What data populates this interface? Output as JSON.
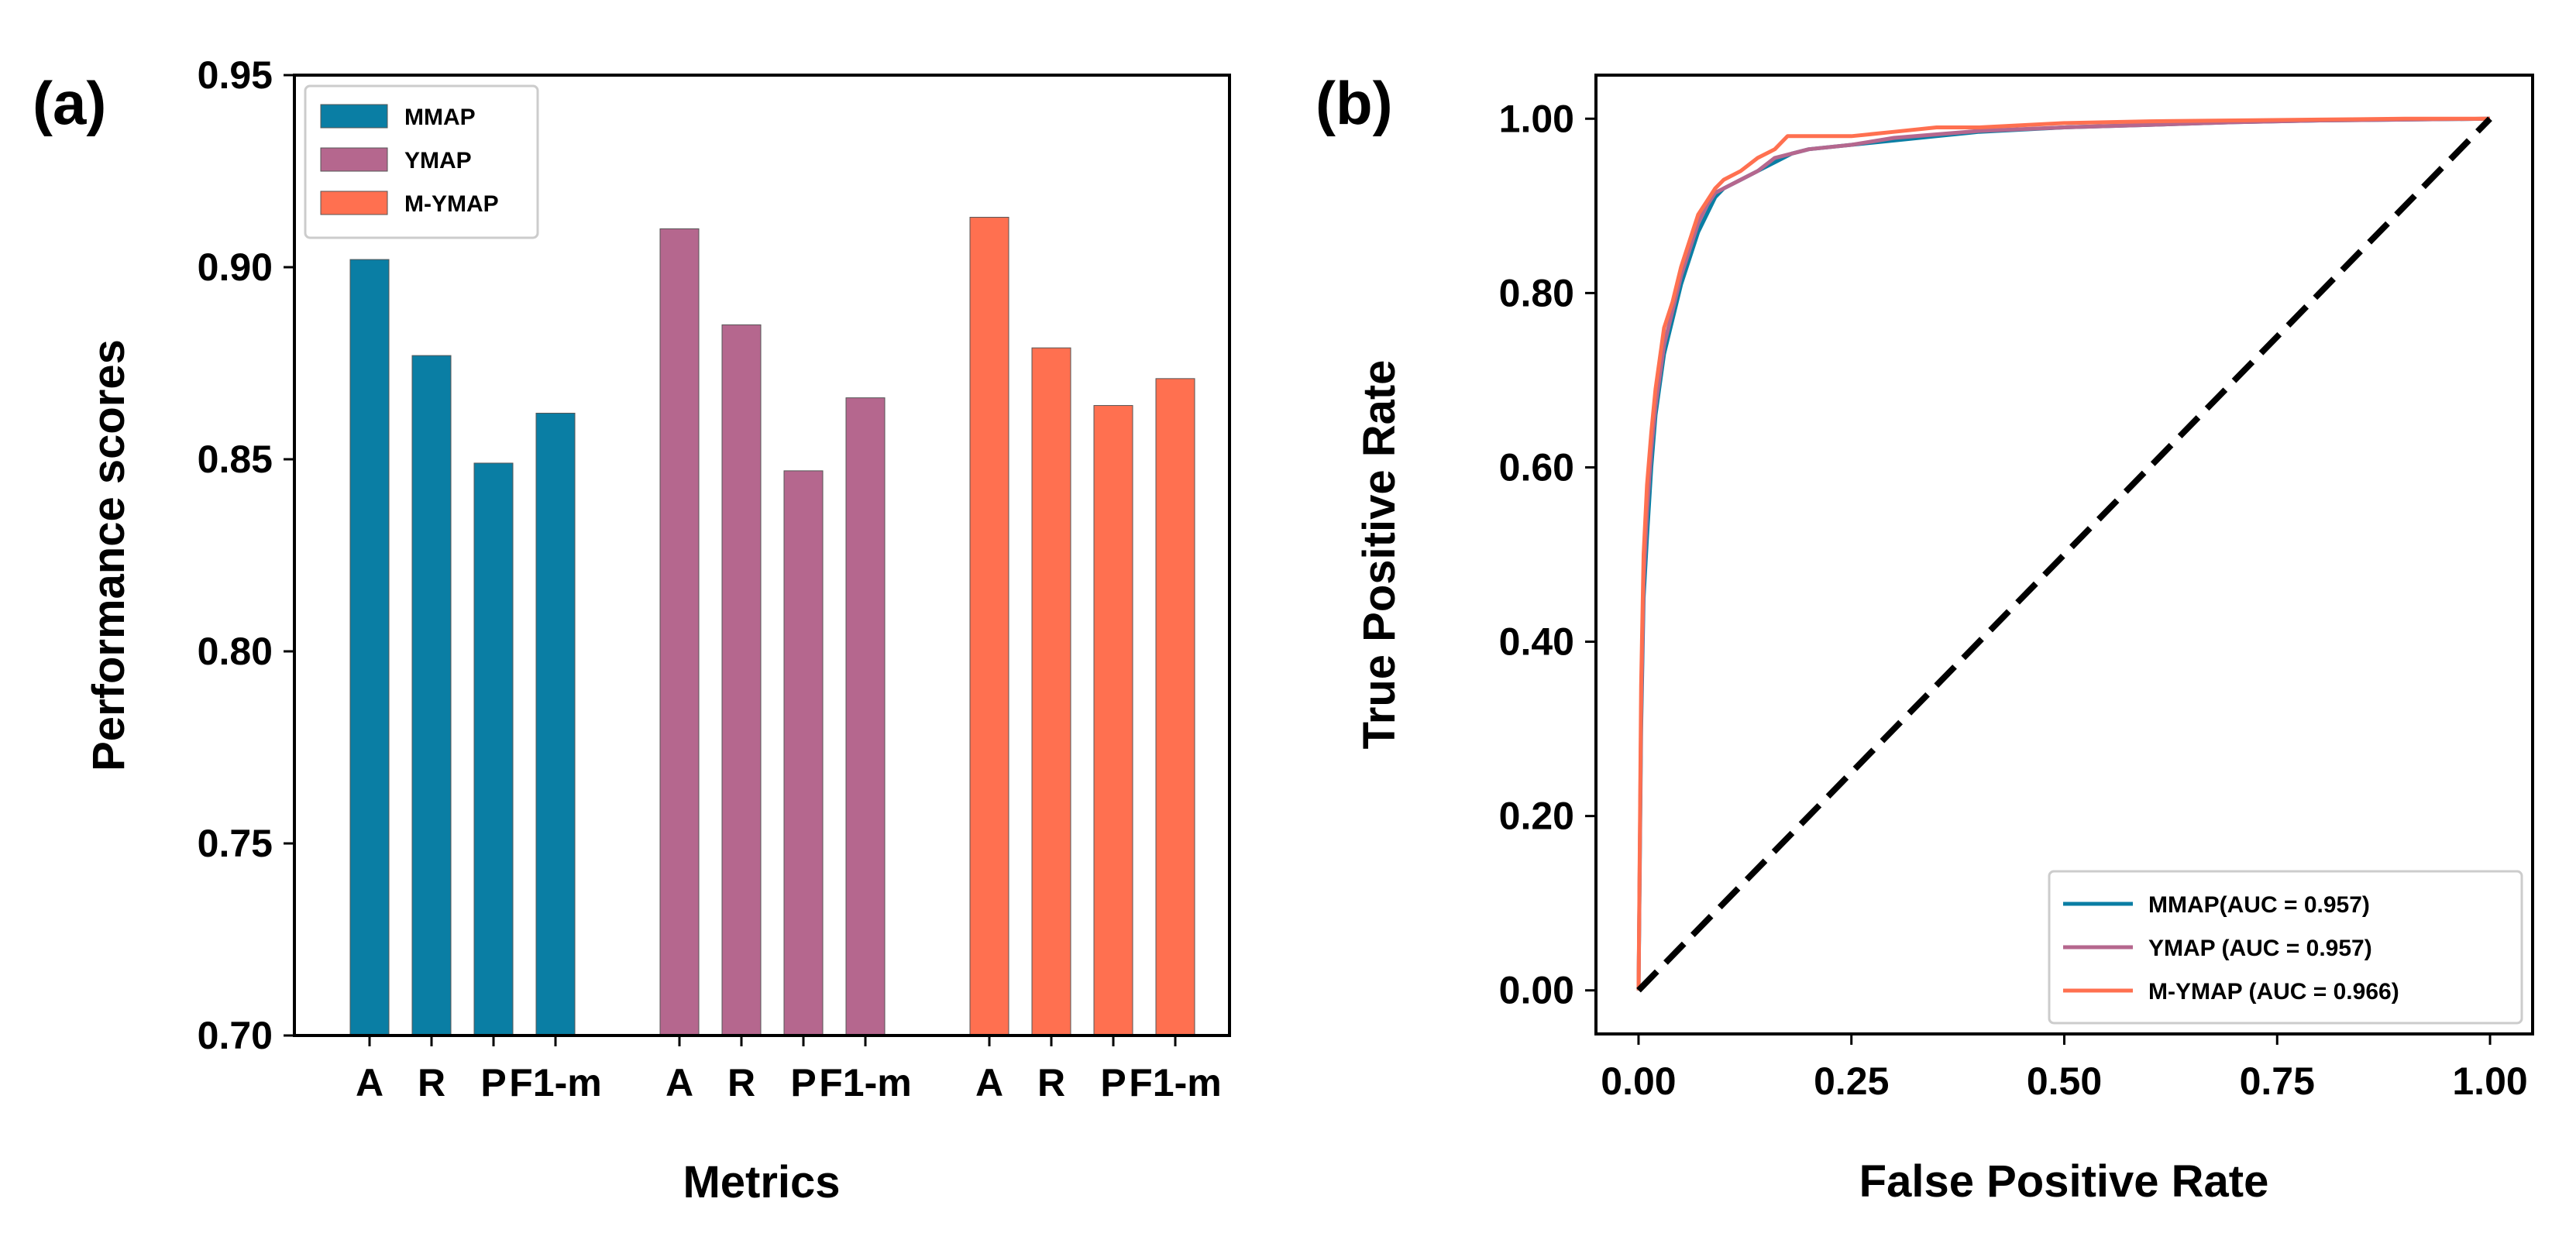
{
  "colors": {
    "mmap": "#0a7ea4",
    "ymap": "#b5678e",
    "mymap": "#ff7050",
    "diagonal": "#000000"
  },
  "chart_data": [
    {
      "panel_label": "(a)",
      "type": "bar",
      "title": "",
      "xlabel": "Metrics",
      "ylabel": "Performance scores",
      "ylim": [
        0.7,
        0.95
      ],
      "yticks": [
        "0.70",
        "0.75",
        "0.80",
        "0.85",
        "0.90",
        "0.95"
      ],
      "categories": [
        "A",
        "R",
        "P",
        "F1-m"
      ],
      "grid": false,
      "legend": "top-left",
      "series": [
        {
          "name": "MMAP",
          "color_key": "mmap",
          "values": [
            0.902,
            0.877,
            0.849,
            0.862
          ]
        },
        {
          "name": "YMAP",
          "color_key": "ymap",
          "values": [
            0.91,
            0.885,
            0.847,
            0.866
          ]
        },
        {
          "name": "M-YMAP",
          "color_key": "mymap",
          "values": [
            0.913,
            0.879,
            0.864,
            0.871
          ]
        }
      ]
    },
    {
      "panel_label": "(b)",
      "type": "line",
      "title": "",
      "xlabel": "False Positive Rate",
      "ylabel": "True Positive Rate",
      "xlim": [
        -0.05,
        1.05
      ],
      "ylim": [
        -0.05,
        1.05
      ],
      "xticks": [
        "0.00",
        "0.25",
        "0.50",
        "0.75",
        "1.00"
      ],
      "yticks": [
        "0.00",
        "0.20",
        "0.40",
        "0.60",
        "0.80",
        "1.00"
      ],
      "grid": false,
      "legend": "bottom-right",
      "series": [
        {
          "name": "MMAP(AUC = 0.957)",
          "color_key": "mmap",
          "x": [
            0,
            0.003,
            0.006,
            0.01,
            0.015,
            0.02,
            0.03,
            0.04,
            0.05,
            0.06,
            0.07,
            0.08,
            0.09,
            0.1,
            0.12,
            0.14,
            0.16,
            0.18,
            0.2,
            0.25,
            0.3,
            0.35,
            0.4,
            0.5,
            0.6,
            0.7,
            0.8,
            0.9,
            1.0
          ],
          "y": [
            0,
            0.3,
            0.45,
            0.52,
            0.6,
            0.66,
            0.73,
            0.77,
            0.81,
            0.84,
            0.87,
            0.89,
            0.91,
            0.92,
            0.93,
            0.94,
            0.95,
            0.96,
            0.965,
            0.97,
            0.975,
            0.98,
            0.985,
            0.99,
            0.993,
            0.996,
            0.998,
            0.999,
            1.0
          ]
        },
        {
          "name": "YMAP (AUC = 0.957)",
          "color_key": "ymap",
          "x": [
            0,
            0.003,
            0.006,
            0.01,
            0.015,
            0.02,
            0.03,
            0.04,
            0.05,
            0.06,
            0.07,
            0.08,
            0.09,
            0.1,
            0.12,
            0.14,
            0.16,
            0.18,
            0.2,
            0.25,
            0.3,
            0.35,
            0.4,
            0.5,
            0.6,
            0.7,
            0.8,
            0.9,
            1.0
          ],
          "y": [
            0,
            0.32,
            0.47,
            0.55,
            0.62,
            0.67,
            0.74,
            0.78,
            0.82,
            0.85,
            0.88,
            0.9,
            0.915,
            0.92,
            0.93,
            0.94,
            0.955,
            0.96,
            0.965,
            0.97,
            0.978,
            0.982,
            0.986,
            0.99,
            0.993,
            0.996,
            0.998,
            0.999,
            1.0
          ]
        },
        {
          "name": "M-YMAP (AUC = 0.966)",
          "color_key": "mymap",
          "x": [
            0,
            0.003,
            0.006,
            0.01,
            0.015,
            0.02,
            0.03,
            0.04,
            0.05,
            0.06,
            0.07,
            0.08,
            0.09,
            0.1,
            0.12,
            0.14,
            0.16,
            0.175,
            0.2,
            0.25,
            0.3,
            0.35,
            0.4,
            0.5,
            0.6,
            0.7,
            0.8,
            0.9,
            1.0
          ],
          "y": [
            0,
            0.35,
            0.5,
            0.58,
            0.64,
            0.69,
            0.76,
            0.79,
            0.83,
            0.86,
            0.89,
            0.905,
            0.92,
            0.93,
            0.94,
            0.955,
            0.965,
            0.98,
            0.98,
            0.98,
            0.985,
            0.99,
            0.99,
            0.995,
            0.997,
            0.998,
            0.999,
            1.0,
            1.0
          ]
        },
        {
          "name": "",
          "color_key": "diagonal",
          "dashed": true,
          "x": [
            0,
            1
          ],
          "y": [
            0,
            1
          ]
        }
      ]
    }
  ]
}
